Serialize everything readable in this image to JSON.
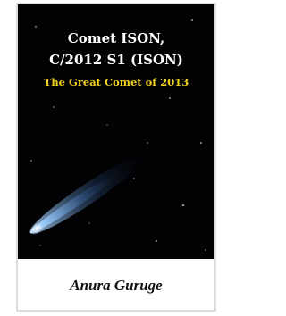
{
  "cover": {
    "title_lines": [
      "Comet ISON,",
      "C/2012 S1 (ISON)"
    ],
    "subtitle": "The Great Comet of 2013",
    "author": "Anura Guruge"
  }
}
